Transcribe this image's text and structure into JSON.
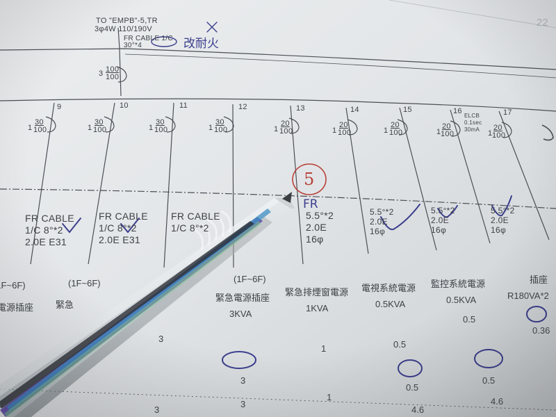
{
  "top_header": {
    "line1": "TO \"EMPB\"-5,TR",
    "line2": "3φ4W 110/190V",
    "cable": "FR CABLE 1/C",
    "cable_spec": "30°*4",
    "handwritten_note": "改耐火"
  },
  "page_corner_number": "22",
  "feeder_breaker_label": {
    "poles": "3",
    "num": "100",
    "den": "100"
  },
  "branch_circuits": [
    {
      "no": "9",
      "poles": "1",
      "num": "30",
      "den": "100"
    },
    {
      "no": "10",
      "poles": "1",
      "num": "30",
      "den": "100"
    },
    {
      "no": "11",
      "poles": "1",
      "num": "30",
      "den": "100"
    },
    {
      "no": "12",
      "poles": "1",
      "num": "30",
      "den": "100"
    },
    {
      "no": "13",
      "poles": "1",
      "num": "20",
      "den": "100"
    },
    {
      "no": "14",
      "poles": "1",
      "num": "20",
      "den": "100"
    },
    {
      "no": "15",
      "poles": "1",
      "num": "20",
      "den": "100"
    },
    {
      "no": "16",
      "poles": "1",
      "num": "20",
      "den": "100",
      "extra1": "ELCB",
      "extra2": "0.1sec",
      "extra3": "30mA"
    },
    {
      "no": "17",
      "poles": "1",
      "num": "20",
      "den": "100"
    }
  ],
  "cable_blocks": [
    {
      "l1": "FR CABLE",
      "l2": "1/C 8°*2",
      "l3": "2.0E E31"
    },
    {
      "l1": "FR CABLE",
      "l2": "1/C 8°*2",
      "l3": "2.0E E31"
    },
    {
      "l1": "FR CABLE",
      "l2": "1/C 8°*2",
      "l3": ""
    },
    {
      "l1": "5.5°*2",
      "l2": "2.0E",
      "l3": "16φ"
    },
    {
      "l1": "5.5°*2",
      "l2": "2.0E",
      "l3": "16φ"
    },
    {
      "l1": "5.5°*2",
      "l2": "2.0E",
      "l3": "16φ"
    },
    {
      "l1": "5.5°*2",
      "l2": "2.0E",
      "l3": "16φ"
    }
  ],
  "handwritten_marks": {
    "circled_number": "5",
    "fr_note": "FR"
  },
  "floor_labels": [
    "(1F~6F)",
    "(1F~6F)",
    "(1F~6F)"
  ],
  "load_columns": [
    {
      "name": "電源插座",
      "kva": ""
    },
    {
      "name": "緊急",
      "kva": ""
    },
    {
      "name": "緊急電源插座",
      "kva": "3KVA"
    },
    {
      "name": "緊急排煙窗電源",
      "kva": "1KVA"
    },
    {
      "name": "電視系統電源",
      "kva": "0.5KVA"
    },
    {
      "name": "監控系統電源",
      "kva": "0.5KVA"
    },
    {
      "name": "插座",
      "kva": "R180VA*2"
    }
  ],
  "value_rows": [
    [
      "0.5",
      "0.36"
    ],
    [
      "3",
      "1",
      "0.5"
    ],
    [
      "3",
      "0.5",
      "0.5"
    ],
    [
      "3",
      "3",
      "1",
      "4.6",
      "4.6"
    ]
  ]
}
